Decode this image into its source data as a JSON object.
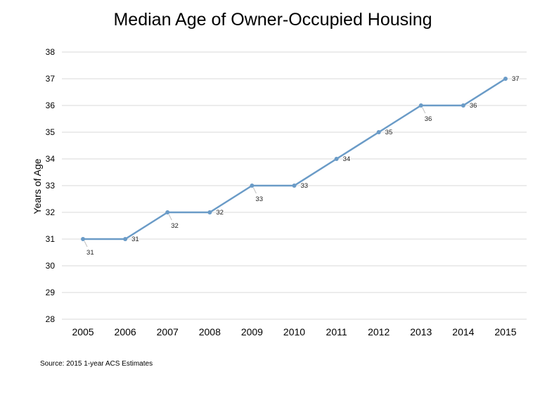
{
  "chart_data": {
    "type": "line",
    "title": "Median Age of Owner-Occupied Housing",
    "xlabel": "",
    "ylabel": "Years of Age",
    "categories": [
      "2005",
      "2006",
      "2007",
      "2008",
      "2009",
      "2010",
      "2011",
      "2012",
      "2013",
      "2014",
      "2015"
    ],
    "series": [
      {
        "values": [
          31,
          31,
          32,
          32,
          33,
          33,
          34,
          35,
          36,
          36,
          37
        ]
      }
    ],
    "data_labels": [
      "31",
      "31",
      "32",
      "32",
      "33",
      "33",
      "34",
      "35",
      "36",
      "36",
      "37"
    ],
    "ylim": [
      28,
      38
    ],
    "yticks": [
      "28",
      "29",
      "30",
      "31",
      "32",
      "33",
      "34",
      "35",
      "36",
      "37",
      "38"
    ],
    "grid": true,
    "legend": "none",
    "line_color": "#6a9bc7",
    "grid_color": "#d9d9d9"
  },
  "source_note": "Source: 2015 1-year ACS Estimates"
}
